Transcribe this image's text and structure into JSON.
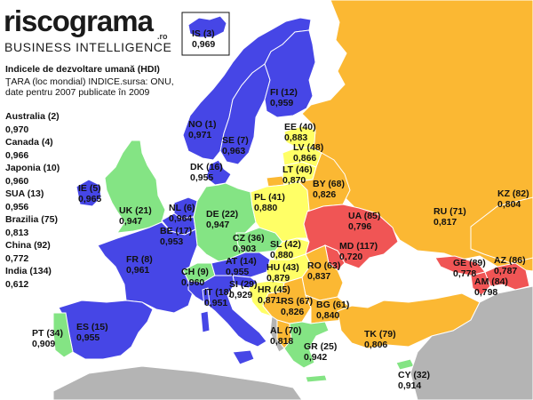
{
  "logo": {
    "wordmark": "riscograma",
    "tld": ".ro",
    "subtitle": "BUSINESS INTELLIGENCE",
    "ring_colors": [
      "#e63946",
      "#f4a300",
      "#3ab54a",
      "#3e5bd9"
    ]
  },
  "legend": {
    "title": "Indicele de dezvoltare umană (HDI)",
    "description": "ŢARA (loc mondial) INDICE.sursa: ONU, date pentru 2007 publicate în 2009"
  },
  "colors": {
    "blue": "#4646e6",
    "green": "#84e484",
    "yellow": "#ffff66",
    "orange": "#fbb833",
    "red": "#f05555",
    "gray": "#b4b4b4",
    "sea": "#ffffff"
  },
  "sidebar": [
    {
      "country": "Australia (2)",
      "hdi": "0,970"
    },
    {
      "country": "Canada (4)",
      "hdi": "0,966"
    },
    {
      "country": "Japonia (10)",
      "hdi": "0,960"
    },
    {
      "country": "SUA (13)",
      "hdi": "0,956"
    },
    {
      "country": "Brazilia (75)",
      "hdi": "0,813"
    },
    {
      "country": "China (92)",
      "hdi": "0,772"
    },
    {
      "country": "India (134)",
      "hdi": "0,612"
    }
  ],
  "countries": [
    {
      "code": "IS",
      "rank": "IS (3)",
      "hdi": "0,969"
    },
    {
      "code": "NO",
      "rank": "NO (1)",
      "hdi": "0,971"
    },
    {
      "code": "SE",
      "rank": "SE (7)",
      "hdi": "0,963"
    },
    {
      "code": "FI",
      "rank": "FI (12)",
      "hdi": "0,959"
    },
    {
      "code": "EE",
      "rank": "EE (40)",
      "hdi": "0,883"
    },
    {
      "code": "LV",
      "rank": "LV (48)",
      "hdi": "0,866"
    },
    {
      "code": "LT",
      "rank": "LT (46)",
      "hdi": "0,870"
    },
    {
      "code": "DK",
      "rank": "DK (16)",
      "hdi": "0,955"
    },
    {
      "code": "IE",
      "rank": "IE (5)",
      "hdi": "0,965"
    },
    {
      "code": "UK",
      "rank": "UK (21)",
      "hdi": "0,947"
    },
    {
      "code": "NL",
      "rank": "NL (6)",
      "hdi": "0,964"
    },
    {
      "code": "BE",
      "rank": "BE (17)",
      "hdi": "0,953"
    },
    {
      "code": "DE",
      "rank": "DE (22)",
      "hdi": "0,947"
    },
    {
      "code": "PL",
      "rank": "PL (41)",
      "hdi": "0,880"
    },
    {
      "code": "BY",
      "rank": "BY (68)",
      "hdi": "0,826"
    },
    {
      "code": "RU",
      "rank": "RU (71)",
      "hdi": "0,817"
    },
    {
      "code": "KZ",
      "rank": "KZ (82)",
      "hdi": "0,804"
    },
    {
      "code": "UA",
      "rank": "UA (85)",
      "hdi": "0,796"
    },
    {
      "code": "MD",
      "rank": "MD (117)",
      "hdi": "0,720"
    },
    {
      "code": "FR",
      "rank": "FR (8)",
      "hdi": "0,961"
    },
    {
      "code": "CZ",
      "rank": "CZ (36)",
      "hdi": "0,903"
    },
    {
      "code": "SL",
      "rank": "SL (42)",
      "hdi": "0,880"
    },
    {
      "code": "AT",
      "rank": "AT (14)",
      "hdi": "0,955"
    },
    {
      "code": "HU",
      "rank": "HU (43)",
      "hdi": "0,879"
    },
    {
      "code": "CH",
      "rank": "CH (9)",
      "hdi": "0,960"
    },
    {
      "code": "SI",
      "rank": "SI (29)",
      "hdi": "0,929"
    },
    {
      "code": "HR",
      "rank": "HR (45)",
      "hdi": "0,871"
    },
    {
      "code": "RO",
      "rank": "RO (63)",
      "hdi": "0,837"
    },
    {
      "code": "IT",
      "rank": "IT (18)",
      "hdi": "0,951"
    },
    {
      "code": "RS",
      "rank": "RS (67)",
      "hdi": "0,826"
    },
    {
      "code": "BG",
      "rank": "BG (61)",
      "hdi": "0,840"
    },
    {
      "code": "GE",
      "rank": "GE (89)",
      "hdi": "0,778"
    },
    {
      "code": "AZ",
      "rank": "AZ (86)",
      "hdi": "0,787"
    },
    {
      "code": "AM",
      "rank": "AM (84)",
      "hdi": "0,798"
    },
    {
      "code": "PT",
      "rank": "PT (34)",
      "hdi": "0,909"
    },
    {
      "code": "ES",
      "rank": "ES (15)",
      "hdi": "0,955"
    },
    {
      "code": "AL",
      "rank": "AL (70)",
      "hdi": "0,818"
    },
    {
      "code": "GR",
      "rank": "GR (25)",
      "hdi": "0,942"
    },
    {
      "code": "TK",
      "rank": "TK (79)",
      "hdi": "0,806"
    },
    {
      "code": "CY",
      "rank": "CY (32)",
      "hdi": "0,914"
    }
  ]
}
